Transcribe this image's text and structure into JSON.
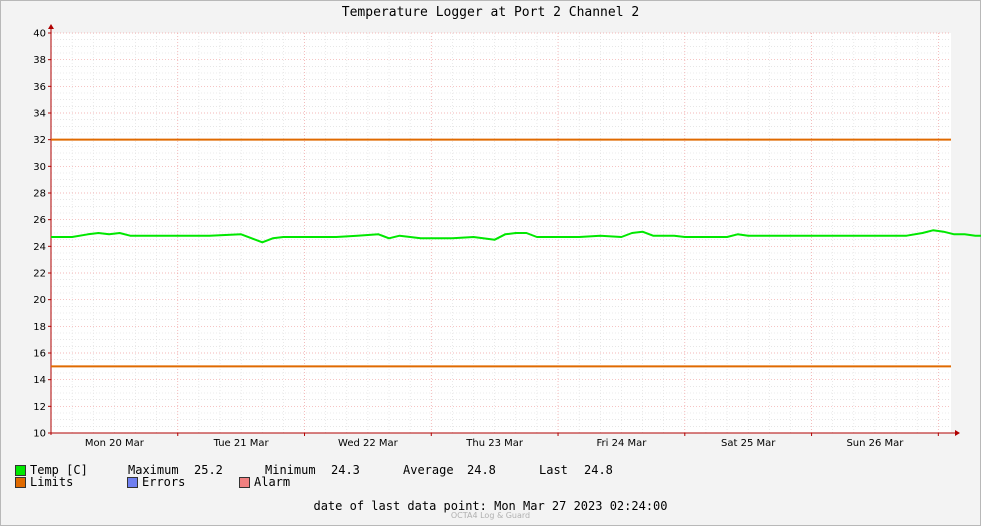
{
  "chart_data": {
    "type": "line",
    "title": "Temperature Logger at Port 2 Channel 2",
    "ylim": [
      10,
      40
    ],
    "y_ticks": [
      10,
      12,
      14,
      16,
      18,
      20,
      22,
      24,
      26,
      28,
      30,
      32,
      34,
      36,
      38,
      40
    ],
    "x_start": "Mon Mar 20 2023 00:00",
    "x_end": "Mon Mar 27 2023 02:24",
    "x_tick_labels": [
      "Mon 20 Mar",
      "Tue 21 Mar",
      "Wed 22 Mar",
      "Thu 23 Mar",
      "Fri 24 Mar",
      "Sat 25 Mar",
      "Sun 26 Mar"
    ],
    "grid": true,
    "series": [
      {
        "name": "Temp [C]",
        "color": "#00e800",
        "x_hours": [
          0,
          4,
          7,
          9,
          11,
          13,
          15,
          17,
          22,
          30,
          36,
          38,
          40,
          42,
          44,
          46,
          48,
          50,
          54,
          58,
          62,
          64,
          66,
          68,
          70,
          72,
          76,
          80,
          84,
          86,
          88,
          90,
          92,
          94,
          96,
          100,
          104,
          108,
          110,
          112,
          114,
          116,
          118,
          120,
          124,
          128,
          130,
          132,
          134,
          136,
          140,
          146,
          150,
          156,
          162,
          165,
          167,
          169,
          171,
          173,
          175,
          177,
          178.4
        ],
        "values": [
          24.7,
          24.7,
          24.9,
          25.0,
          24.9,
          25.0,
          24.8,
          24.8,
          24.8,
          24.8,
          24.9,
          24.6,
          24.3,
          24.6,
          24.7,
          24.7,
          24.7,
          24.7,
          24.7,
          24.8,
          24.9,
          24.6,
          24.8,
          24.7,
          24.6,
          24.6,
          24.6,
          24.7,
          24.5,
          24.9,
          25.0,
          25.0,
          24.7,
          24.7,
          24.7,
          24.7,
          24.8,
          24.7,
          25.0,
          25.1,
          24.8,
          24.8,
          24.8,
          24.7,
          24.7,
          24.7,
          24.9,
          24.8,
          24.8,
          24.8,
          24.8,
          24.8,
          24.8,
          24.8,
          24.8,
          25.0,
          25.2,
          25.1,
          24.9,
          24.9,
          24.8,
          24.8,
          24.8
        ]
      },
      {
        "name": "Limits",
        "color": "#e06a00",
        "values": [
          32,
          15
        ]
      },
      {
        "name": "Errors",
        "color": "#6f7ff0",
        "values": []
      },
      {
        "name": "Alarm",
        "color": "#f08080",
        "values": []
      }
    ]
  },
  "legend": {
    "temp_label": "Temp [C]",
    "limits_label": "Limits",
    "errors_label": "Errors",
    "alarm_label": "Alarm",
    "maximum_label": "Maximum",
    "maximum_value": "25.2",
    "minimum_label": "Minimum",
    "minimum_value": "24.3",
    "average_label": "Average",
    "average_value": "24.8",
    "last_label": "Last",
    "last_value": "24.8"
  },
  "last_data_point": "date of last data point:  Mon Mar 27 2023 02:24:00",
  "footer_credit": "OCTA4 Log & Guard"
}
